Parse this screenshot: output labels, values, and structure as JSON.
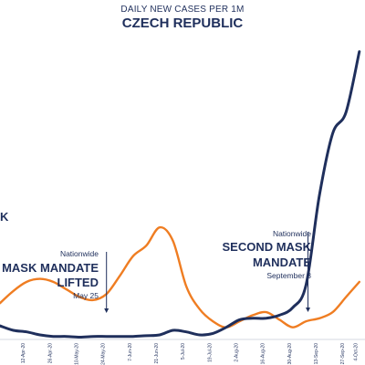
{
  "header": {
    "subtitle": "DAILY NEW CASES PER 1M",
    "title": "CZECH REPUBLIC"
  },
  "colors": {
    "czech_series": "#1f2f5c",
    "comparison_series": "#ef7d22",
    "text": "#1f2f5c"
  },
  "annotations": {
    "left_fragment": "K",
    "first": {
      "small_top": "Nationwide",
      "line1": "MASK MANDATE",
      "line2": "LIFTED",
      "small_bottom": "May 25"
    },
    "second": {
      "small_top": "Nationwide",
      "line1": "SECOND MASK",
      "line2": "MANDATE",
      "small_bottom": "September 8"
    }
  },
  "chart_data": {
    "type": "line",
    "subtitle": "DAILY NEW CASES PER 1M",
    "title": "CZECH REPUBLIC",
    "xlabel": "",
    "ylabel": "",
    "x_tick_labels": [
      "12-Apr-20",
      "26-Apr-20",
      "10-May-20",
      "24-May-20",
      "7-Jun-20",
      "21-Jun-20",
      "5-Jul-20",
      "19-Jul-20",
      "2-Aug-20",
      "16-Aug-20",
      "30-Aug-20",
      "13-Sep-20",
      "27-Sep-20",
      "4-Oct-20"
    ],
    "x": [
      "2020-03-30",
      "2020-04-06",
      "2020-04-13",
      "2020-04-20",
      "2020-04-27",
      "2020-05-04",
      "2020-05-11",
      "2020-05-18",
      "2020-05-25",
      "2020-06-01",
      "2020-06-08",
      "2020-06-15",
      "2020-06-22",
      "2020-06-29",
      "2020-07-06",
      "2020-07-13",
      "2020-07-20",
      "2020-07-27",
      "2020-08-03",
      "2020-08-10",
      "2020-08-17",
      "2020-08-24",
      "2020-08-31",
      "2020-09-07",
      "2020-09-14",
      "2020-09-21",
      "2020-09-28",
      "2020-10-05"
    ],
    "series": [
      {
        "values": [
          9,
          6,
          5,
          3,
          2,
          2,
          1.5,
          2,
          2,
          2,
          2,
          2.5,
          3,
          6,
          5,
          3,
          4,
          8,
          13,
          14,
          14,
          16,
          21,
          36,
          95,
          136,
          150,
          190
        ]
      },
      {
        "values": [
          24,
          32,
          38,
          40,
          38,
          33,
          28,
          26,
          30,
          42,
          55,
          62,
          74,
          65,
          35,
          20,
          12,
          8,
          12,
          16,
          18,
          13,
          8,
          12,
          14,
          18,
          28,
          38
        ]
      }
    ],
    "annotations": [
      {
        "date": "2020-05-25",
        "label": "MASK MANDATE LIFTED"
      },
      {
        "date": "2020-09-08",
        "label": "SECOND MASK MANDATE"
      }
    ]
  }
}
